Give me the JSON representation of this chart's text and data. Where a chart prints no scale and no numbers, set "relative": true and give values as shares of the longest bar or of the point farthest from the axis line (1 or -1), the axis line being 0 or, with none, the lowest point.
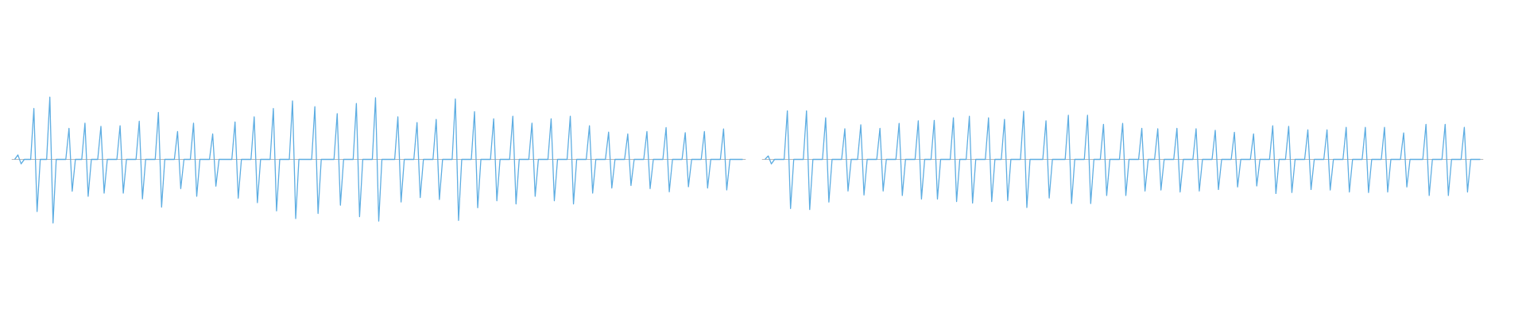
{
  "chart_data": [
    {
      "type": "line",
      "relative": true,
      "grid": false,
      "line_style": "solid",
      "categories": [
        null,
        null,
        null,
        null,
        null,
        null,
        null,
        null,
        null,
        null,
        null,
        null,
        null,
        null,
        null,
        null,
        null,
        null,
        null,
        null,
        null,
        null,
        null,
        null,
        null,
        null,
        null,
        null,
        null,
        null,
        null,
        null,
        null,
        null,
        null,
        null,
        null,
        null,
        null,
        null,
        null,
        null,
        null,
        null,
        null,
        null,
        null,
        null,
        null,
        null,
        null,
        null,
        null,
        null,
        null,
        null,
        null,
        null,
        null,
        null,
        null,
        null,
        null,
        null,
        null,
        null,
        null,
        null,
        null,
        null,
        null,
        null,
        null,
        null,
        null,
        null,
        null,
        null,
        null,
        null,
        null,
        null,
        null,
        null,
        null,
        null,
        null,
        null,
        null,
        null,
        null,
        null,
        null,
        null,
        null,
        null,
        null,
        null,
        null,
        null,
        null,
        null,
        null,
        null,
        null,
        null,
        null,
        null,
        null,
        null,
        null,
        null,
        null,
        null,
        null,
        null,
        null,
        null,
        null,
        null,
        null,
        null,
        null,
        null,
        null,
        null,
        null,
        null,
        null,
        null,
        null,
        null,
        null,
        null,
        null,
        null,
        null,
        null,
        null,
        null,
        null,
        null,
        null,
        null,
        null,
        null,
        null,
        null,
        null,
        null,
        null,
        null,
        null,
        null,
        null,
        null,
        null,
        null,
        null,
        null,
        null,
        null,
        null,
        null,
        null,
        null,
        null,
        null,
        null,
        null,
        null,
        null,
        null,
        null,
        null,
        null,
        null,
        null,
        null,
        null,
        null,
        null,
        null,
        null,
        null,
        null,
        null,
        null,
        null,
        null,
        null,
        null,
        null,
        null,
        null,
        null,
        null,
        null,
        null,
        null,
        null,
        null,
        null,
        null,
        null,
        null,
        null,
        null,
        null,
        null,
        null,
        null,
        null,
        null,
        null,
        null,
        null,
        null,
        null,
        null,
        null,
        null,
        null,
        null,
        null,
        null,
        null,
        null,
        null
      ],
      "series": [
        {
          "color": "#5dade2",
          "values": [
            0,
            0.07,
            -0.07,
            0,
            0,
            0,
            0.8,
            -0.82,
            0,
            0,
            0,
            0.98,
            -1,
            0,
            0,
            0,
            0,
            0.49,
            -0.5,
            0,
            0,
            0,
            0.57,
            -0.58,
            0,
            0,
            0,
            0.52,
            -0.53,
            0,
            0,
            0,
            0,
            0.53,
            -0.53,
            0,
            0,
            0,
            0,
            0.6,
            -0.62,
            0,
            0,
            0,
            0,
            0.74,
            -0.75,
            0,
            0,
            0,
            0,
            0.44,
            -0.46,
            0,
            0,
            0,
            0.57,
            -0.58,
            0,
            0,
            0,
            0,
            0.4,
            -0.42,
            0,
            0,
            0,
            0,
            0,
            0.59,
            -0.61,
            0,
            0,
            0,
            0,
            0.67,
            -0.68,
            0,
            0,
            0,
            0,
            0.8,
            -0.81,
            0,
            0,
            0,
            0,
            0.92,
            -0.93,
            0,
            0,
            0,
            0,
            0,
            0.83,
            -0.85,
            0,
            0,
            0,
            0,
            0,
            0.72,
            -0.72,
            0,
            0,
            0,
            0,
            0.88,
            -0.9,
            0,
            0,
            0,
            0,
            0.97,
            -0.97,
            0,
            0,
            0,
            0,
            0,
            0.67,
            -0.67,
            0,
            0,
            0,
            0,
            0.58,
            -0.6,
            0,
            0,
            0,
            0,
            0.63,
            -0.63,
            0,
            0,
            0,
            0,
            0.95,
            -0.96,
            0,
            0,
            0,
            0,
            0.75,
            -0.76,
            0,
            0,
            0,
            0,
            0.64,
            -0.65,
            0,
            0,
            0,
            0,
            0.68,
            -0.7,
            0,
            0,
            0,
            0,
            0.57,
            -0.58,
            0,
            0,
            0,
            0,
            0.64,
            -0.65,
            0,
            0,
            0,
            0,
            0.68,
            -0.7,
            0,
            0,
            0,
            0,
            0.53,
            -0.53,
            0,
            0,
            0,
            0,
            0.43,
            -0.45,
            0,
            0,
            0,
            0,
            0.4,
            -0.41,
            0,
            0,
            0,
            0,
            0.44,
            -0.46,
            0,
            0,
            0,
            0,
            0.5,
            -0.51,
            0,
            0,
            0,
            0,
            0.42,
            -0.43,
            0,
            0,
            0,
            0,
            0.44,
            -0.45,
            0,
            0,
            0,
            0,
            0.48,
            -0.48,
            0,
            0,
            0,
            0,
            0
          ]
        }
      ]
    },
    {
      "type": "line",
      "relative": true,
      "grid": false,
      "line_style": "solid",
      "categories": [
        null,
        null,
        null,
        null,
        null,
        null,
        null,
        null,
        null,
        null,
        null,
        null,
        null,
        null,
        null,
        null,
        null,
        null,
        null,
        null,
        null,
        null,
        null,
        null,
        null,
        null,
        null,
        null,
        null,
        null,
        null,
        null,
        null,
        null,
        null,
        null,
        null,
        null,
        null,
        null,
        null,
        null,
        null,
        null,
        null,
        null,
        null,
        null,
        null,
        null,
        null,
        null,
        null,
        null,
        null,
        null,
        null,
        null,
        null,
        null,
        null,
        null,
        null,
        null,
        null,
        null,
        null,
        null,
        null,
        null,
        null,
        null,
        null,
        null,
        null,
        null,
        null,
        null,
        null,
        null,
        null,
        null,
        null,
        null,
        null,
        null,
        null,
        null,
        null,
        null,
        null,
        null,
        null,
        null,
        null,
        null,
        null,
        null,
        null,
        null,
        null,
        null,
        null,
        null,
        null,
        null,
        null,
        null,
        null,
        null,
        null,
        null,
        null,
        null,
        null,
        null,
        null,
        null,
        null,
        null,
        null,
        null,
        null,
        null,
        null,
        null,
        null,
        null,
        null,
        null,
        null,
        null,
        null,
        null,
        null,
        null,
        null,
        null,
        null,
        null,
        null,
        null,
        null,
        null,
        null,
        null,
        null,
        null,
        null,
        null,
        null,
        null,
        null,
        null,
        null,
        null,
        null,
        null,
        null,
        null,
        null,
        null,
        null,
        null,
        null,
        null,
        null,
        null,
        null,
        null,
        null,
        null,
        null,
        null,
        null,
        null,
        null,
        null,
        null,
        null,
        null,
        null,
        null,
        null,
        null,
        null,
        null,
        null,
        null,
        null,
        null,
        null,
        null,
        null,
        null,
        null,
        null,
        null,
        null,
        null,
        null,
        null,
        null,
        null,
        null,
        null,
        null,
        null,
        null,
        null,
        null,
        null,
        null,
        null,
        null,
        null,
        null,
        null,
        null,
        null,
        null,
        null,
        null,
        null,
        null
      ],
      "series": [
        {
          "color": "#5dade2",
          "values": [
            0,
            0.07,
            -0.09,
            0,
            0,
            0,
            0,
            0.97,
            -0.98,
            0,
            0,
            0,
            0,
            0.97,
            -1,
            0,
            0,
            0,
            0,
            0.83,
            -0.85,
            0,
            0,
            0,
            0,
            0.61,
            -0.63,
            0,
            0,
            0,
            0.69,
            -0.71,
            0,
            0,
            0,
            0,
            0.62,
            -0.63,
            0,
            0,
            0,
            0,
            0.72,
            -0.72,
            0,
            0,
            0,
            0,
            0.77,
            -0.79,
            0,
            0,
            0,
            0.78,
            -0.79,
            0,
            0,
            0,
            0,
            0.83,
            -0.84,
            0,
            0,
            0,
            0.86,
            -0.87,
            0,
            0,
            0,
            0,
            0.83,
            -0.84,
            0,
            0,
            0,
            0.8,
            -0.82,
            0,
            0,
            0,
            0,
            0.96,
            -0.96,
            0,
            0,
            0,
            0,
            0,
            0.77,
            -0.77,
            0,
            0,
            0,
            0,
            0,
            0.88,
            -0.88,
            0,
            0,
            0,
            0,
            0.88,
            -0.88,
            0,
            0,
            0,
            0.7,
            -0.72,
            0,
            0,
            0,
            0,
            0.72,
            -0.72,
            0,
            0,
            0,
            0,
            0.62,
            -0.63,
            0,
            0,
            0,
            0.61,
            -0.61,
            0,
            0,
            0,
            0,
            0.62,
            -0.65,
            0,
            0,
            0,
            0,
            0.61,
            -0.63,
            0,
            0,
            0,
            0,
            0.58,
            -0.6,
            0,
            0,
            0,
            0,
            0.54,
            -0.55,
            0,
            0,
            0,
            0,
            0.51,
            -0.53,
            0,
            0,
            0,
            0,
            0.67,
            -0.68,
            0,
            0,
            0,
            0.66,
            -0.66,
            0,
            0,
            0,
            0,
            0.59,
            -0.6,
            0,
            0,
            0,
            0,
            0.59,
            -0.61,
            0,
            0,
            0,
            0,
            0.64,
            -0.65,
            0,
            0,
            0,
            0,
            0.64,
            -0.66,
            0,
            0,
            0,
            0,
            0.64,
            -0.65,
            0,
            0,
            0,
            0,
            0.53,
            -0.55,
            0,
            0,
            0,
            0,
            0,
            0.7,
            -0.72,
            0,
            0,
            0,
            0,
            0.7,
            -0.72,
            0,
            0,
            0,
            0,
            0.64,
            -0.65,
            0,
            0,
            0,
            0
          ]
        }
      ]
    }
  ]
}
